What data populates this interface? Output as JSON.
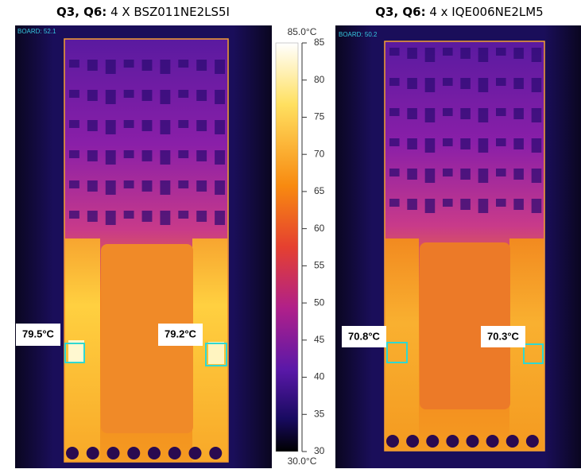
{
  "left": {
    "title_bold": "Q3, Q6:",
    "title_rest": "4 X BSZ011NE2LS5I",
    "board_label": "BOARD: 52.1",
    "spots": [
      "79.5°C",
      "79.2°C"
    ]
  },
  "right": {
    "title_bold": "Q3, Q6:",
    "title_rest": "4 x IQE006NE2LM5",
    "board_label": "BOARD: 50.2",
    "spots": [
      "70.8°C",
      "70.3°C"
    ]
  },
  "colorbar": {
    "max_label": "85.0°C",
    "min_label": "30.0°C",
    "ticks": [
      85,
      80,
      75,
      70,
      65,
      60,
      55,
      50,
      45,
      40,
      35,
      30
    ]
  }
}
